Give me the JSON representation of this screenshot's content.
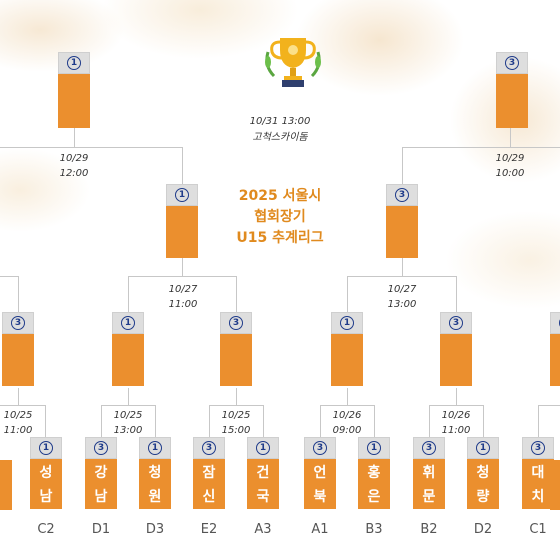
{
  "title": {
    "line1": "2025 서울시",
    "line2": "협회장기",
    "line3": "U15 추계리그"
  },
  "final": {
    "date": "10/31 13:00",
    "venue": "고척스카이돔"
  },
  "round_dates": {
    "left_semi": [
      "10/29",
      "12:00"
    ],
    "right_semi": [
      "10/29",
      "10:00"
    ],
    "left_qf": [
      "10/27",
      "11:00"
    ],
    "right_qf": [
      "10/27",
      "13:00"
    ],
    "r16_1": [
      "10/25",
      "11:00"
    ],
    "r16_2": [
      "10/25",
      "13:00"
    ],
    "r16_3": [
      "10/25",
      "15:00"
    ],
    "r16_4": [
      "10/26",
      "09:00"
    ],
    "r16_5": [
      "10/26",
      "11:00"
    ]
  },
  "badges": {
    "top_left": "1",
    "top_right": "3",
    "semi_left": "1",
    "semi_right": "3",
    "qf": [
      "3",
      "1",
      "3",
      "1",
      "3",
      "3"
    ],
    "teams": [
      "1",
      "3",
      "1",
      "3",
      "1",
      "3",
      "1",
      "3",
      "1",
      "3"
    ]
  },
  "teams": [
    {
      "name": "성남",
      "c1": "성",
      "c2": "남",
      "seed": "C2"
    },
    {
      "name": "강남",
      "c1": "강",
      "c2": "남",
      "seed": "D1"
    },
    {
      "name": "청원",
      "c1": "청",
      "c2": "원",
      "seed": "D3"
    },
    {
      "name": "잠신",
      "c1": "잠",
      "c2": "신",
      "seed": "E2"
    },
    {
      "name": "건국",
      "c1": "건",
      "c2": "국",
      "seed": "A3"
    },
    {
      "name": "언북",
      "c1": "언",
      "c2": "북",
      "seed": "A1"
    },
    {
      "name": "홍은",
      "c1": "홍",
      "c2": "은",
      "seed": "B3"
    },
    {
      "name": "휘문",
      "c1": "휘",
      "c2": "문",
      "seed": "B2"
    },
    {
      "name": "청량",
      "c1": "청",
      "c2": "량",
      "seed": "D2"
    },
    {
      "name": "대치",
      "c1": "대",
      "c2": "치",
      "seed": "C1"
    }
  ]
}
